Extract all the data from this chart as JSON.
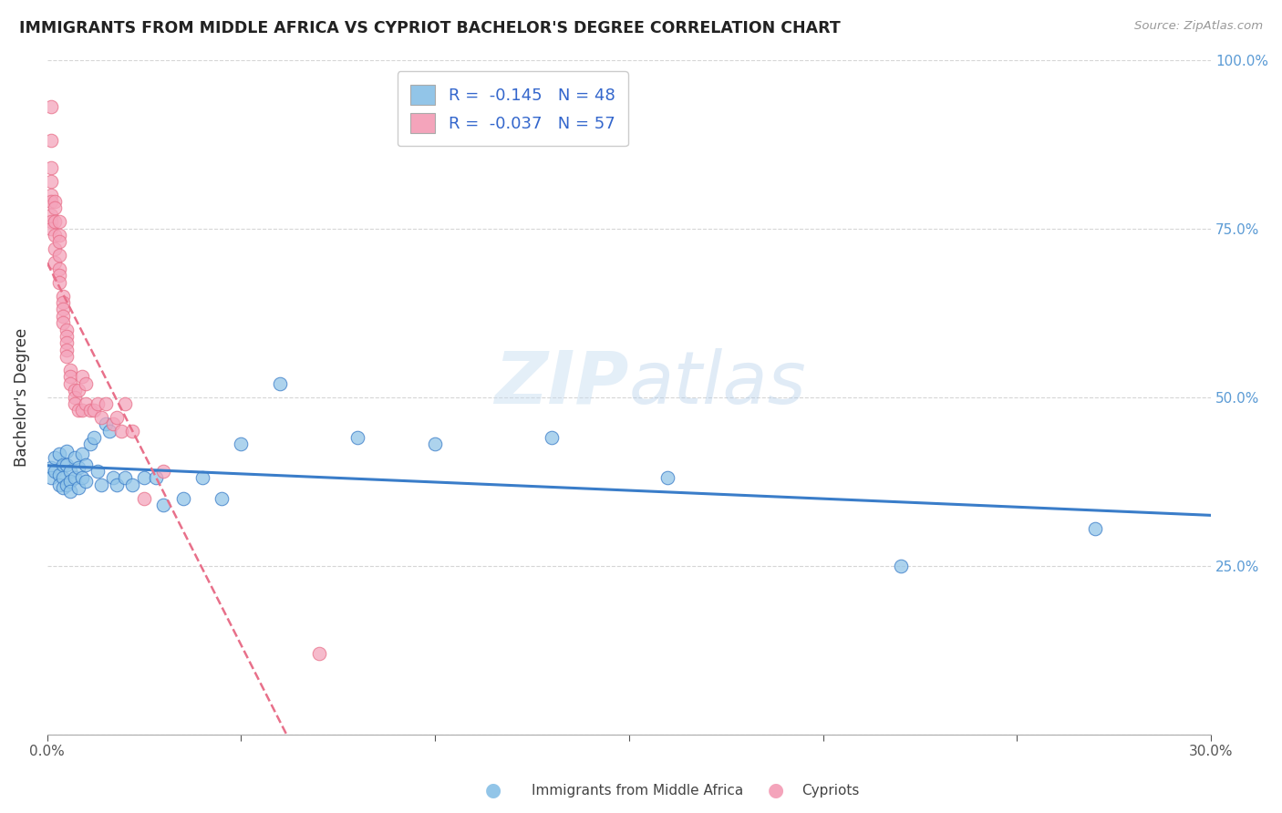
{
  "title": "IMMIGRANTS FROM MIDDLE AFRICA VS CYPRIOT BACHELOR'S DEGREE CORRELATION CHART",
  "source": "Source: ZipAtlas.com",
  "ylabel": "Bachelor's Degree",
  "xlim": [
    0.0,
    0.3
  ],
  "ylim": [
    0.0,
    1.0
  ],
  "legend_R1": "-0.145",
  "legend_N1": "48",
  "legend_R2": "-0.037",
  "legend_N2": "57",
  "color_blue": "#92C5E8",
  "color_pink": "#F4A4BB",
  "line_blue": "#3A7DC9",
  "line_pink": "#E8708A",
  "background": "#ffffff",
  "watermark": "ZIPatlas",
  "blue_x": [
    0.001,
    0.001,
    0.002,
    0.002,
    0.003,
    0.003,
    0.003,
    0.004,
    0.004,
    0.004,
    0.005,
    0.005,
    0.005,
    0.006,
    0.006,
    0.006,
    0.007,
    0.007,
    0.008,
    0.008,
    0.009,
    0.009,
    0.01,
    0.01,
    0.011,
    0.012,
    0.013,
    0.014,
    0.015,
    0.016,
    0.017,
    0.018,
    0.02,
    0.022,
    0.025,
    0.028,
    0.03,
    0.035,
    0.04,
    0.045,
    0.05,
    0.06,
    0.08,
    0.1,
    0.13,
    0.16,
    0.22,
    0.27
  ],
  "blue_y": [
    0.395,
    0.38,
    0.41,
    0.39,
    0.415,
    0.385,
    0.37,
    0.4,
    0.38,
    0.365,
    0.42,
    0.4,
    0.37,
    0.39,
    0.375,
    0.36,
    0.41,
    0.38,
    0.395,
    0.365,
    0.415,
    0.38,
    0.4,
    0.375,
    0.43,
    0.44,
    0.39,
    0.37,
    0.46,
    0.45,
    0.38,
    0.37,
    0.38,
    0.37,
    0.38,
    0.38,
    0.34,
    0.35,
    0.38,
    0.35,
    0.43,
    0.52,
    0.44,
    0.43,
    0.44,
    0.38,
    0.25,
    0.305
  ],
  "pink_x": [
    0.001,
    0.001,
    0.001,
    0.001,
    0.001,
    0.001,
    0.001,
    0.001,
    0.001,
    0.002,
    0.002,
    0.002,
    0.002,
    0.002,
    0.002,
    0.003,
    0.003,
    0.003,
    0.003,
    0.003,
    0.003,
    0.003,
    0.004,
    0.004,
    0.004,
    0.004,
    0.004,
    0.005,
    0.005,
    0.005,
    0.005,
    0.005,
    0.006,
    0.006,
    0.006,
    0.007,
    0.007,
    0.007,
    0.008,
    0.008,
    0.009,
    0.009,
    0.01,
    0.01,
    0.011,
    0.012,
    0.013,
    0.014,
    0.015,
    0.017,
    0.018,
    0.019,
    0.02,
    0.022,
    0.025,
    0.03,
    0.07
  ],
  "pink_y": [
    0.93,
    0.88,
    0.84,
    0.82,
    0.8,
    0.79,
    0.77,
    0.76,
    0.75,
    0.79,
    0.78,
    0.76,
    0.74,
    0.72,
    0.7,
    0.76,
    0.74,
    0.73,
    0.71,
    0.69,
    0.68,
    0.67,
    0.65,
    0.64,
    0.63,
    0.62,
    0.61,
    0.6,
    0.59,
    0.58,
    0.57,
    0.56,
    0.54,
    0.53,
    0.52,
    0.51,
    0.5,
    0.49,
    0.48,
    0.51,
    0.48,
    0.53,
    0.49,
    0.52,
    0.48,
    0.48,
    0.49,
    0.47,
    0.49,
    0.46,
    0.47,
    0.45,
    0.49,
    0.45,
    0.35,
    0.39,
    0.12
  ]
}
